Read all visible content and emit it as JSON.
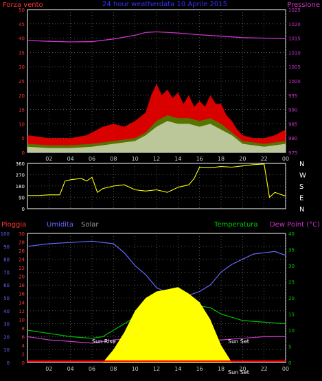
{
  "chart_data": [
    {
      "type": "line",
      "title": "24 hour weatherdata 10 Aprile 2015",
      "ylabel_left": "Forza vento",
      "ylabel_right": "Pressione",
      "y_left_ticks": [
        0,
        5,
        10,
        15,
        20,
        25,
        30,
        35,
        40,
        45,
        50
      ],
      "y_right_ticks": [
        975,
        980,
        985,
        990,
        995,
        1000,
        1005,
        1010,
        1015,
        1020,
        1025
      ],
      "ylim_left": [
        0,
        50
      ],
      "ylim_right": [
        975,
        1025
      ],
      "x_ticks": [
        "02",
        "04",
        "06",
        "08",
        "10",
        "12",
        "14",
        "16",
        "18",
        "20",
        "22",
        "00"
      ],
      "grid": true,
      "colors": {
        "gust": "#ff0000",
        "wind": "#ffffff",
        "avg": "#00c000",
        "pressure": "#cc33cc"
      },
      "series": [
        {
          "color": "#cc33cc",
          "axis": "right",
          "x": [
            0,
            2,
            4,
            6,
            8,
            10,
            11,
            12,
            14,
            16,
            18,
            20,
            22,
            24
          ],
          "values": [
            1014.2,
            1013.9,
            1013.7,
            1013.8,
            1014.7,
            1016.0,
            1017.0,
            1017.2,
            1016.8,
            1016.2,
            1015.7,
            1015.2,
            1015.0,
            1014.8
          ]
        },
        {
          "color": "#ff0000",
          "axis": "left",
          "x": [
            0,
            2,
            4,
            5.5,
            7,
            8,
            9,
            10,
            11,
            11.5,
            12,
            12.5,
            13,
            13.5,
            14,
            14.5,
            15,
            15.5,
            16,
            16.5,
            17,
            17.5,
            18,
            18.5,
            19,
            19.5,
            20,
            21,
            22,
            23,
            24
          ],
          "values": [
            6,
            5,
            5,
            6,
            9,
            10,
            9,
            11,
            14,
            20,
            24,
            20,
            22,
            19,
            21,
            17,
            20,
            16,
            18,
            16,
            20,
            17,
            17,
            13,
            11,
            8,
            6,
            5,
            5,
            6,
            8
          ]
        },
        {
          "color": "#00c000",
          "axis": "left",
          "x": [
            0,
            2,
            4,
            6,
            8,
            10,
            11,
            12,
            13,
            14,
            15,
            16,
            17,
            18,
            19,
            20,
            22,
            24
          ],
          "values": [
            3,
            2.5,
            2.5,
            3,
            4,
            5,
            7,
            11,
            13,
            12,
            12,
            11,
            12,
            10,
            7,
            4,
            3,
            4
          ]
        },
        {
          "color": "#ffffff",
          "axis": "left",
          "x": [
            0,
            2,
            4,
            6,
            8,
            10,
            11,
            12,
            13,
            14,
            15,
            16,
            17,
            18,
            19,
            20,
            22,
            24
          ],
          "values": [
            2,
            1.5,
            1.5,
            2,
            3,
            4,
            6,
            9,
            11,
            10,
            10,
            9,
            10,
            8,
            6,
            3,
            2,
            3
          ]
        }
      ]
    },
    {
      "type": "line",
      "y_ticks": [
        0,
        90,
        180,
        270,
        360
      ],
      "ylim": [
        0,
        360
      ],
      "direction_labels": [
        "N",
        "W",
        "S",
        "E",
        "N"
      ],
      "x_ticks": [
        "02",
        "04",
        "06",
        "08",
        "10",
        "12",
        "14",
        "16",
        "18",
        "20",
        "22",
        "00"
      ],
      "grid": true,
      "series": [
        {
          "color": "#ffff00",
          "x": [
            0,
            1,
            2,
            3,
            3.5,
            4,
            5,
            5.5,
            6,
            6.5,
            7,
            8,
            9,
            10,
            11,
            12,
            13,
            14,
            15,
            15.5,
            16,
            17,
            18,
            19,
            20,
            21,
            22,
            22.5,
            23,
            24
          ],
          "values": [
            105,
            105,
            110,
            110,
            220,
            230,
            240,
            220,
            250,
            130,
            160,
            180,
            190,
            150,
            140,
            150,
            130,
            170,
            190,
            240,
            330,
            325,
            335,
            330,
            340,
            350,
            355,
            90,
            130,
            100
          ]
        }
      ]
    },
    {
      "type": "line",
      "ylabel_left_1": "Pioggia",
      "ylabel_left_2": "Umidita",
      "ylabel_left_3": "Solar",
      "ylabel_right_1": "Temperatura",
      "ylabel_right_2": "Dew Point (°C)",
      "y_humidity_ticks": [
        0,
        10,
        20,
        30,
        40,
        50,
        60,
        70,
        80,
        90,
        100
      ],
      "y_rain_ticks": [
        0,
        2,
        4,
        6,
        8,
        10,
        12,
        14,
        16,
        18,
        20,
        22,
        24,
        26,
        28,
        30
      ],
      "y_temp_ticks": [
        0,
        5,
        10,
        15,
        20,
        25,
        30,
        35,
        40
      ],
      "ylim_humidity": [
        0,
        100
      ],
      "ylim_temp": [
        0,
        40
      ],
      "x_ticks": [
        "02",
        "04",
        "06",
        "08",
        "10",
        "12",
        "14",
        "16",
        "18",
        "20",
        "22",
        "00"
      ],
      "annotations": {
        "sunrise": "Sun Rise",
        "sunset": "Sun Set",
        "now": "Sun Set"
      },
      "grid": true,
      "series": [
        {
          "color": "#6666ff",
          "axis": "humidity",
          "x": [
            0,
            2,
            4,
            6,
            8,
            9,
            10,
            11,
            12,
            13,
            14,
            15,
            16,
            17,
            18,
            19,
            20,
            21,
            22,
            23,
            24
          ],
          "values": [
            90,
            92,
            93,
            94,
            92,
            85,
            75,
            68,
            58,
            54,
            50,
            52,
            55,
            60,
            70,
            76,
            80,
            84,
            85,
            86,
            83
          ]
        },
        {
          "color": "#00c000",
          "axis": "temp",
          "x": [
            0,
            2,
            4,
            6,
            7,
            8,
            9,
            10,
            11,
            12,
            13,
            14,
            15,
            16,
            17,
            18,
            20,
            22,
            24
          ],
          "values": [
            10,
            9,
            8,
            7.5,
            8,
            10,
            12,
            14,
            16,
            17,
            18,
            18.5,
            18,
            17.5,
            17,
            15,
            13,
            12.5,
            12
          ]
        },
        {
          "color": "#cc33cc",
          "axis": "temp",
          "x": [
            0,
            2,
            4,
            6,
            8,
            10,
            12,
            14,
            16,
            18,
            20,
            22,
            24
          ],
          "values": [
            8,
            7,
            6.5,
            6,
            7,
            7.5,
            8,
            8,
            7,
            7,
            7.5,
            8,
            8
          ]
        },
        {
          "color": "#ffff00",
          "axis": "rain_scale_solar",
          "fill": true,
          "x": [
            7,
            8,
            9,
            10,
            11,
            12,
            13,
            14,
            15,
            16,
            17,
            18,
            19
          ],
          "values": [
            0,
            3,
            7,
            12,
            15,
            16.5,
            17,
            17.5,
            16,
            14,
            10,
            4,
            0
          ]
        },
        {
          "color": "#ff0000",
          "axis": "rain",
          "x": [
            0,
            24
          ],
          "values": [
            0.3,
            0.3
          ]
        }
      ]
    }
  ],
  "footer_now": "Sun Set"
}
